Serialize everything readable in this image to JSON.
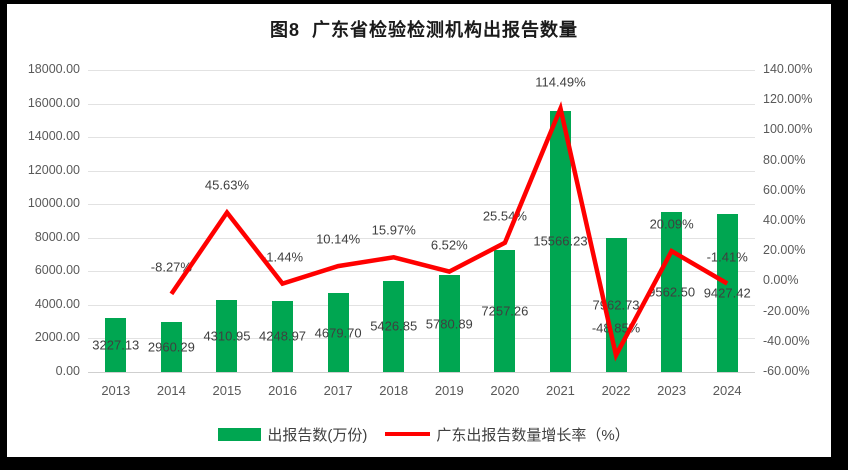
{
  "chart_data": {
    "type": "bar",
    "title": "图8  广东省检验检测机构出报告数量",
    "categories": [
      "2013",
      "2014",
      "2015",
      "2016",
      "2017",
      "2018",
      "2019",
      "2020",
      "2021",
      "2022",
      "2023",
      "2024"
    ],
    "series": [
      {
        "name": "出报告数(万份)",
        "type": "bar",
        "axis": "left",
        "color": "#00A651",
        "values": [
          3227.13,
          2960.29,
          4310.95,
          4248.97,
          4679.7,
          5426.85,
          5780.89,
          7257.26,
          15566.23,
          7962.73,
          9562.5,
          9427.42
        ]
      },
      {
        "name": "广东出报告数量增长率（%）",
        "type": "line",
        "axis": "right",
        "color": "#FF0000",
        "values": [
          null,
          -8.27,
          45.63,
          -1.44,
          10.14,
          15.97,
          6.52,
          25.54,
          114.49,
          -48.85,
          20.09,
          -1.41
        ]
      }
    ],
    "left_axis": {
      "min": 0,
      "max": 18000,
      "step": 2000,
      "tick_labels": [
        "18000.00",
        "16000.00",
        "14000.00",
        "12000.00",
        "10000.00",
        "8000.00",
        "6000.00",
        "4000.00",
        "2000.00",
        "0.00"
      ]
    },
    "right_axis": {
      "min": -60,
      "max": 140,
      "step": 20,
      "tick_labels": [
        "140.00%",
        "120.00%",
        "100.00%",
        "80.00%",
        "60.00%",
        "40.00%",
        "20.00%",
        "0.00%",
        "-20.00%",
        "-40.00%",
        "-60.00%"
      ]
    },
    "grid": true,
    "legend_position": "bottom"
  }
}
